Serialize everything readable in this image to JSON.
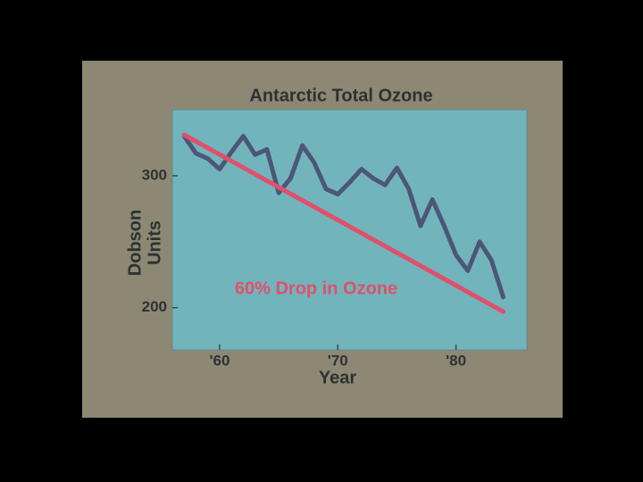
{
  "chart_data": {
    "type": "line",
    "title": "Antarctic Total Ozone",
    "x_label": "Year",
    "y_label": [
      "Dobson",
      "Units"
    ],
    "annotation": "60% Drop in Ozone",
    "xlim": [
      1956,
      1986
    ],
    "xticks": [
      {
        "value": 1960,
        "label": "'60"
      },
      {
        "value": 1970,
        "label": "'70"
      },
      {
        "value": 1980,
        "label": "'80"
      }
    ],
    "ylim": [
      168,
      350
    ],
    "yticks": [
      200,
      300
    ],
    "series": [
      {
        "color": "#4c5678",
        "x": [
          1957,
          1958,
          1959,
          1960,
          1961,
          1962,
          1963,
          1964,
          1965,
          1966,
          1967,
          1968,
          1969,
          1970,
          1971,
          1972,
          1973,
          1974,
          1975,
          1976,
          1977,
          1978,
          1979,
          1980,
          1981,
          1982,
          1983,
          1984
        ],
        "values": [
          330,
          317,
          313,
          305,
          318,
          330,
          316,
          320,
          287,
          298,
          323,
          310,
          290,
          286,
          295,
          305,
          298,
          293,
          306,
          290,
          262,
          282,
          262,
          240,
          228,
          250,
          236,
          208
        ]
      },
      {
        "color": "#e0506a",
        "x": [
          1957,
          1984
        ],
        "values": [
          331,
          197
        ]
      }
    ]
  }
}
